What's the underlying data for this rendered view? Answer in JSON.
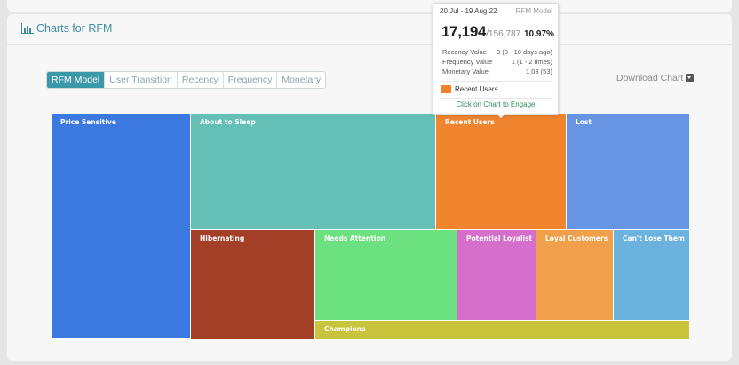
{
  "card": {
    "title": "Charts for RFM",
    "title_icon": "bar-chart-icon"
  },
  "tabs": [
    {
      "label": "RFM Model",
      "active": true
    },
    {
      "label": "User Transition",
      "active": false
    },
    {
      "label": "Recency",
      "active": false
    },
    {
      "label": "Frequency",
      "active": false
    },
    {
      "label": "Monetary",
      "active": false
    }
  ],
  "download": {
    "label": "Download Chart",
    "icon": "dropdown-icon"
  },
  "treemap": {
    "segments": [
      {
        "name": "Price Sensitive",
        "color": "#3b78e0"
      },
      {
        "name": "About to Sleep",
        "color": "#64c0b6"
      },
      {
        "name": "Recent Users",
        "color": "#f0842f"
      },
      {
        "name": "Lost",
        "color": "#6895e3"
      },
      {
        "name": "Hibernating",
        "color": "#a43f27"
      },
      {
        "name": "Needs Attention",
        "color": "#6ce17f"
      },
      {
        "name": "Potential Loyalist",
        "color": "#d56fcb"
      },
      {
        "name": "Loyal Customers",
        "color": "#f09f4a"
      },
      {
        "name": "Can't Lose Them",
        "color": "#6bb3de"
      },
      {
        "name": "Champions",
        "color": "#c8c43c"
      }
    ]
  },
  "tooltip": {
    "date_range": "20 Jul - 19 Aug 22",
    "model": "RFM Model",
    "count": "17,194",
    "total": "/156,787",
    "percent": "10.97%",
    "rows": [
      {
        "key": "Recency Value",
        "value": "3 (0 - 10 days ago)"
      },
      {
        "key": "Frequency Value",
        "value": "1 (1 - 2 times)"
      },
      {
        "key": "Monetary Value",
        "value": "1.03 (53)"
      }
    ],
    "series": "Recent Users",
    "series_color": "#f0822e",
    "engage": "Click on Chart to Engage"
  }
}
